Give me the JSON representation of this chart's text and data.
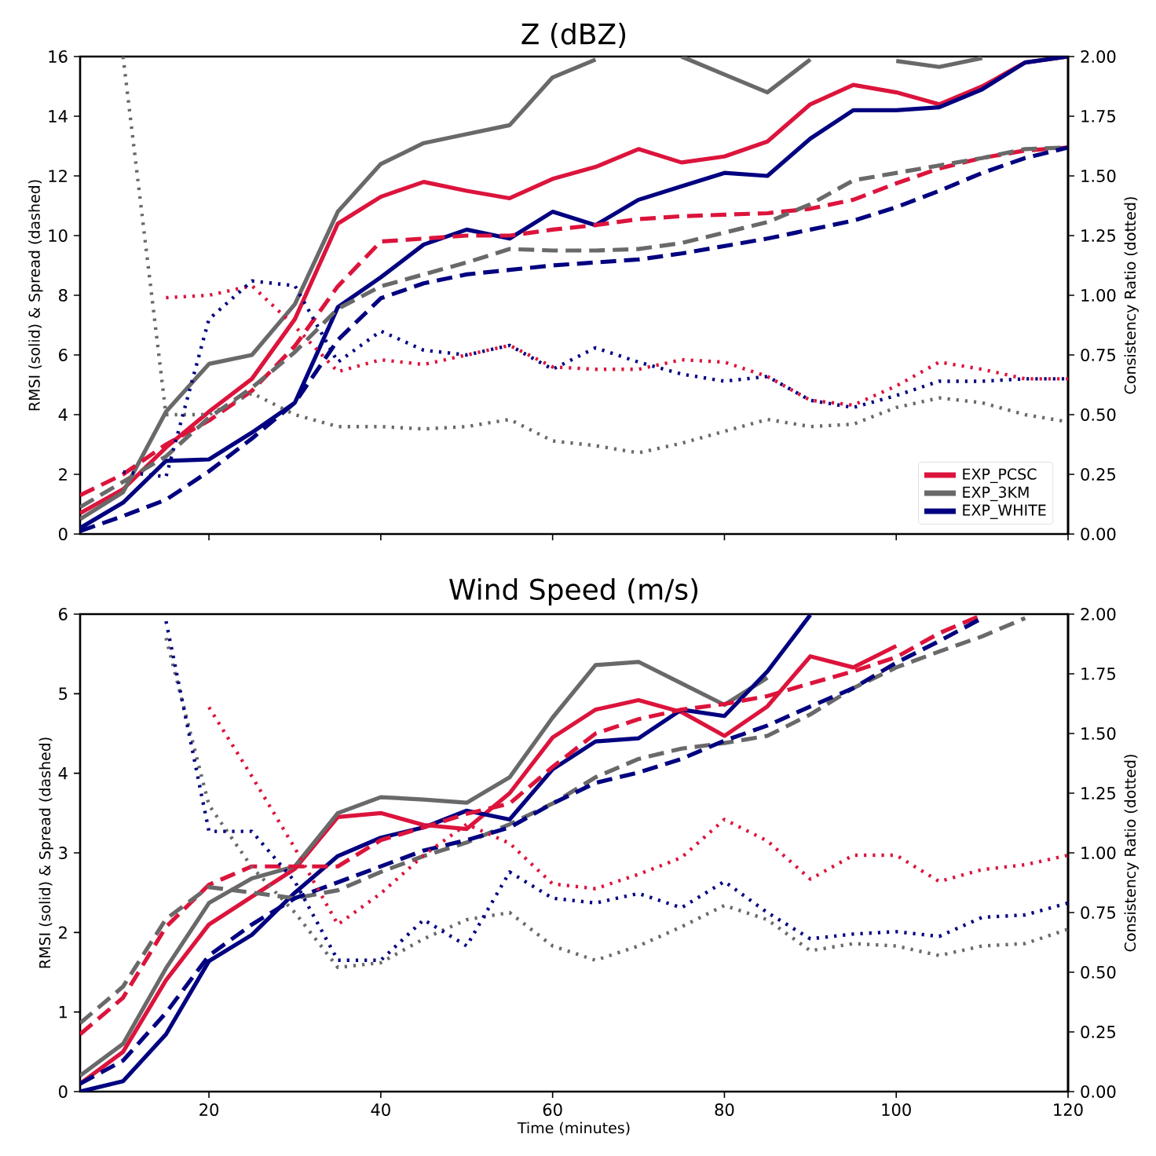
{
  "chart_data": [
    {
      "type": "line",
      "title": "Z (dBZ)",
      "ylabel": "RMSI (solid) & Spread (dashed)",
      "y2label": "Consistency Ratio (dotted)",
      "legend": "bottom right",
      "tick_labels": "y",
      "x": [
        5,
        10,
        15,
        20,
        25,
        30,
        35,
        40,
        45,
        50,
        55,
        60,
        65,
        70,
        75,
        80,
        85,
        90,
        95,
        100,
        105,
        110,
        115,
        120
      ],
      "xlim": [
        5,
        120
      ],
      "xticks": [
        {
          "value": 20,
          "label": null
        },
        {
          "value": 40,
          "label": null
        },
        {
          "value": 60,
          "label": null
        },
        {
          "value": 80,
          "label": null
        },
        {
          "value": 100,
          "label": null
        },
        {
          "value": 120,
          "label": null
        }
      ],
      "ylim": [
        0,
        16
      ],
      "yticks": [
        0,
        2,
        4,
        6,
        8,
        10,
        12,
        14,
        16
      ],
      "y2lim": [
        0,
        2
      ],
      "y2ticks": [
        {
          "value": 0,
          "label": "0.00"
        },
        {
          "value": 0.25,
          "label": "0.25"
        },
        {
          "value": 0.5,
          "label": "0.50"
        },
        {
          "value": 0.75,
          "label": "0.75"
        },
        {
          "value": 1,
          "label": "1.00"
        },
        {
          "value": 1.25,
          "label": "1.25"
        },
        {
          "value": 1.5,
          "label": "1.50"
        },
        {
          "value": 1.75,
          "label": "1.75"
        },
        {
          "value": 2,
          "label": "2.00"
        }
      ],
      "series": [
        {
          "name": "EXP_PCSC",
          "color": "#dc143c",
          "line_style": "solid",
          "values": [
            0.7,
            1.5,
            2.9,
            4.1,
            5.2,
            7.2,
            10.4,
            11.3,
            11.8,
            11.5,
            11.25,
            11.9,
            12.3,
            12.9,
            12.45,
            12.65,
            13.15,
            14.4,
            15.05,
            14.8,
            14.4,
            15.0,
            15.8,
            16.0
          ]
        },
        {
          "name": "EXP_3KM",
          "color": "#696969",
          "line_style": "solid",
          "values": [
            0.5,
            1.4,
            4.1,
            5.7,
            6.0,
            7.7,
            10.8,
            12.4,
            13.1,
            13.4,
            13.7,
            15.3,
            15.9,
            null,
            16.0,
            15.4,
            14.8,
            15.9,
            null,
            15.85,
            15.65,
            15.95,
            null,
            null
          ]
        },
        {
          "name": "EXP_WHITE",
          "color": "#000080",
          "line_style": "solid",
          "values": [
            0.2,
            1.05,
            2.45,
            2.5,
            3.4,
            4.4,
            7.6,
            8.6,
            9.7,
            10.2,
            9.9,
            10.8,
            10.35,
            11.2,
            11.65,
            12.1,
            12.0,
            13.25,
            14.2,
            14.2,
            14.3,
            14.9,
            15.8,
            16.0
          ]
        },
        {
          "color": "#dc143c",
          "line_style": "dashed",
          "values": [
            1.3,
            2.0,
            3.0,
            3.8,
            4.8,
            6.3,
            8.3,
            9.8,
            9.9,
            10.0,
            10.0,
            10.2,
            10.35,
            10.55,
            10.65,
            10.7,
            10.75,
            10.9,
            11.2,
            11.75,
            12.25,
            12.6,
            12.85,
            12.95
          ]
        },
        {
          "color": "#696969",
          "line_style": "dashed",
          "values": [
            0.9,
            1.75,
            2.6,
            3.9,
            4.9,
            6.1,
            7.55,
            8.3,
            8.7,
            9.1,
            9.55,
            9.5,
            9.5,
            9.55,
            9.75,
            10.1,
            10.45,
            11.05,
            11.85,
            12.1,
            12.35,
            12.6,
            12.9,
            12.95
          ]
        },
        {
          "color": "#000080",
          "line_style": "dashed",
          "values": [
            0.1,
            0.6,
            1.15,
            2.1,
            3.2,
            4.4,
            6.5,
            7.9,
            8.4,
            8.7,
            8.85,
            9.0,
            9.1,
            9.2,
            9.4,
            9.65,
            9.9,
            10.2,
            10.5,
            10.95,
            11.5,
            12.1,
            12.6,
            12.95
          ]
        },
        {
          "color": "#dc143c",
          "line_style": "dotted",
          "axis": "y2",
          "values": [
            null,
            null,
            0.99,
            1.0,
            1.04,
            0.87,
            0.68,
            0.73,
            0.71,
            0.75,
            0.79,
            0.7,
            0.69,
            0.69,
            0.73,
            0.72,
            0.66,
            0.56,
            0.54,
            0.62,
            0.72,
            0.69,
            0.65,
            0.65
          ]
        },
        {
          "color": "#696969",
          "line_style": "dotted",
          "axis": "y2",
          "values": [
            null,
            2.0,
            0.5,
            0.5,
            0.59,
            0.5,
            0.45,
            0.45,
            0.44,
            0.45,
            0.48,
            0.39,
            0.37,
            0.34,
            0.38,
            0.43,
            0.48,
            0.45,
            0.46,
            0.53,
            0.57,
            0.55,
            0.5,
            0.47
          ]
        },
        {
          "color": "#000080",
          "line_style": "dotted",
          "axis": "y2",
          "values": [
            null,
            0.26,
            0.24,
            0.9,
            1.06,
            1.04,
            0.72,
            0.85,
            0.77,
            0.75,
            0.79,
            0.69,
            0.78,
            0.72,
            0.67,
            0.64,
            0.66,
            0.56,
            0.53,
            0.58,
            0.64,
            0.64,
            0.65,
            0.65
          ]
        }
      ]
    },
    {
      "type": "line",
      "title": "Wind Speed (m/s)",
      "xlabel": "Time (minutes)",
      "ylabel": "RMSI (solid) & Spread (dashed)",
      "y2label": "Consistency Ratio (dotted)",
      "x": [
        5,
        10,
        15,
        20,
        25,
        30,
        35,
        40,
        45,
        50,
        55,
        60,
        65,
        70,
        75,
        80,
        85,
        90,
        95,
        100,
        105,
        110,
        115,
        120
      ],
      "xlim": [
        5,
        120
      ],
      "xticks": [
        20,
        40,
        60,
        80,
        100,
        120
      ],
      "ylim": [
        0,
        6
      ],
      "yticks": [
        0,
        1,
        2,
        3,
        4,
        5,
        6
      ],
      "y2lim": [
        0,
        2
      ],
      "y2ticks": [
        {
          "value": 0,
          "label": "0.00"
        },
        {
          "value": 0.25,
          "label": "0.25"
        },
        {
          "value": 0.5,
          "label": "0.50"
        },
        {
          "value": 0.75,
          "label": "0.75"
        },
        {
          "value": 1,
          "label": "1.00"
        },
        {
          "value": 1.25,
          "label": "1.25"
        },
        {
          "value": 1.5,
          "label": "1.50"
        },
        {
          "value": 1.75,
          "label": "1.75"
        },
        {
          "value": 2,
          "label": "2.00"
        }
      ],
      "series": [
        {
          "color": "#dc143c",
          "line_style": "solid",
          "values": [
            0.1,
            0.5,
            1.4,
            2.1,
            2.45,
            2.8,
            3.45,
            3.5,
            3.35,
            3.3,
            3.75,
            4.45,
            4.8,
            4.92,
            4.77,
            4.47,
            4.84,
            5.47,
            5.33,
            5.6,
            null,
            null,
            null,
            null
          ]
        },
        {
          "color": "#696969",
          "line_style": "solid",
          "values": [
            0.2,
            0.6,
            1.55,
            2.37,
            2.68,
            2.83,
            3.5,
            3.7,
            3.67,
            3.63,
            3.95,
            4.7,
            5.36,
            5.4,
            5.13,
            4.86,
            5.2,
            null,
            null,
            null,
            null,
            null,
            null,
            null
          ]
        },
        {
          "color": "#000080",
          "line_style": "solid",
          "values": [
            0.0,
            0.13,
            0.72,
            1.64,
            1.97,
            2.5,
            2.96,
            3.19,
            3.32,
            3.53,
            3.42,
            4.05,
            4.4,
            4.44,
            4.8,
            4.72,
            5.28,
            5.99,
            null,
            null,
            null,
            null,
            null,
            null
          ]
        },
        {
          "color": "#dc143c",
          "line_style": "dashed",
          "values": [
            0.72,
            1.18,
            2.07,
            2.6,
            2.83,
            2.83,
            2.83,
            3.16,
            3.32,
            3.49,
            3.62,
            4.08,
            4.5,
            4.68,
            4.8,
            4.87,
            4.97,
            5.13,
            5.28,
            5.46,
            5.76,
            5.99,
            null,
            null
          ]
        },
        {
          "color": "#696969",
          "line_style": "dashed",
          "values": [
            0.86,
            1.32,
            2.17,
            2.57,
            2.5,
            2.43,
            2.53,
            2.76,
            2.96,
            3.13,
            3.36,
            3.62,
            3.95,
            4.18,
            4.31,
            4.38,
            4.47,
            4.74,
            5.07,
            5.33,
            5.53,
            5.72,
            5.95,
            null
          ]
        },
        {
          "color": "#000080",
          "line_style": "dashed",
          "values": [
            0.1,
            0.39,
            0.99,
            1.71,
            2.1,
            2.43,
            2.63,
            2.83,
            3.03,
            3.16,
            3.32,
            3.62,
            3.88,
            4.01,
            4.18,
            4.41,
            4.6,
            4.84,
            5.07,
            5.39,
            5.66,
            5.95,
            null,
            null
          ]
        },
        {
          "color": "#dc143c",
          "line_style": "dotted",
          "axis": "y2",
          "values": [
            null,
            null,
            null,
            1.61,
            1.32,
            1.02,
            0.7,
            0.83,
            0.99,
            1.12,
            1.04,
            0.87,
            0.85,
            0.91,
            0.98,
            1.14,
            1.05,
            0.89,
            0.99,
            0.99,
            0.88,
            0.93,
            0.95,
            0.99
          ]
        },
        {
          "color": "#696969",
          "line_style": "dotted",
          "axis": "y2",
          "values": [
            null,
            null,
            1.9,
            1.2,
            0.94,
            0.75,
            0.52,
            0.54,
            0.64,
            0.72,
            0.75,
            0.61,
            0.55,
            0.61,
            0.69,
            0.78,
            0.72,
            0.59,
            0.62,
            0.61,
            0.57,
            0.61,
            0.62,
            0.68
          ]
        },
        {
          "color": "#000080",
          "line_style": "dotted",
          "axis": "y2",
          "values": [
            null,
            null,
            1.97,
            1.09,
            1.09,
            0.88,
            0.55,
            0.55,
            0.72,
            0.61,
            0.92,
            0.81,
            0.79,
            0.83,
            0.77,
            0.88,
            0.75,
            0.64,
            0.66,
            0.67,
            0.65,
            0.73,
            0.74,
            0.79
          ]
        }
      ]
    }
  ]
}
